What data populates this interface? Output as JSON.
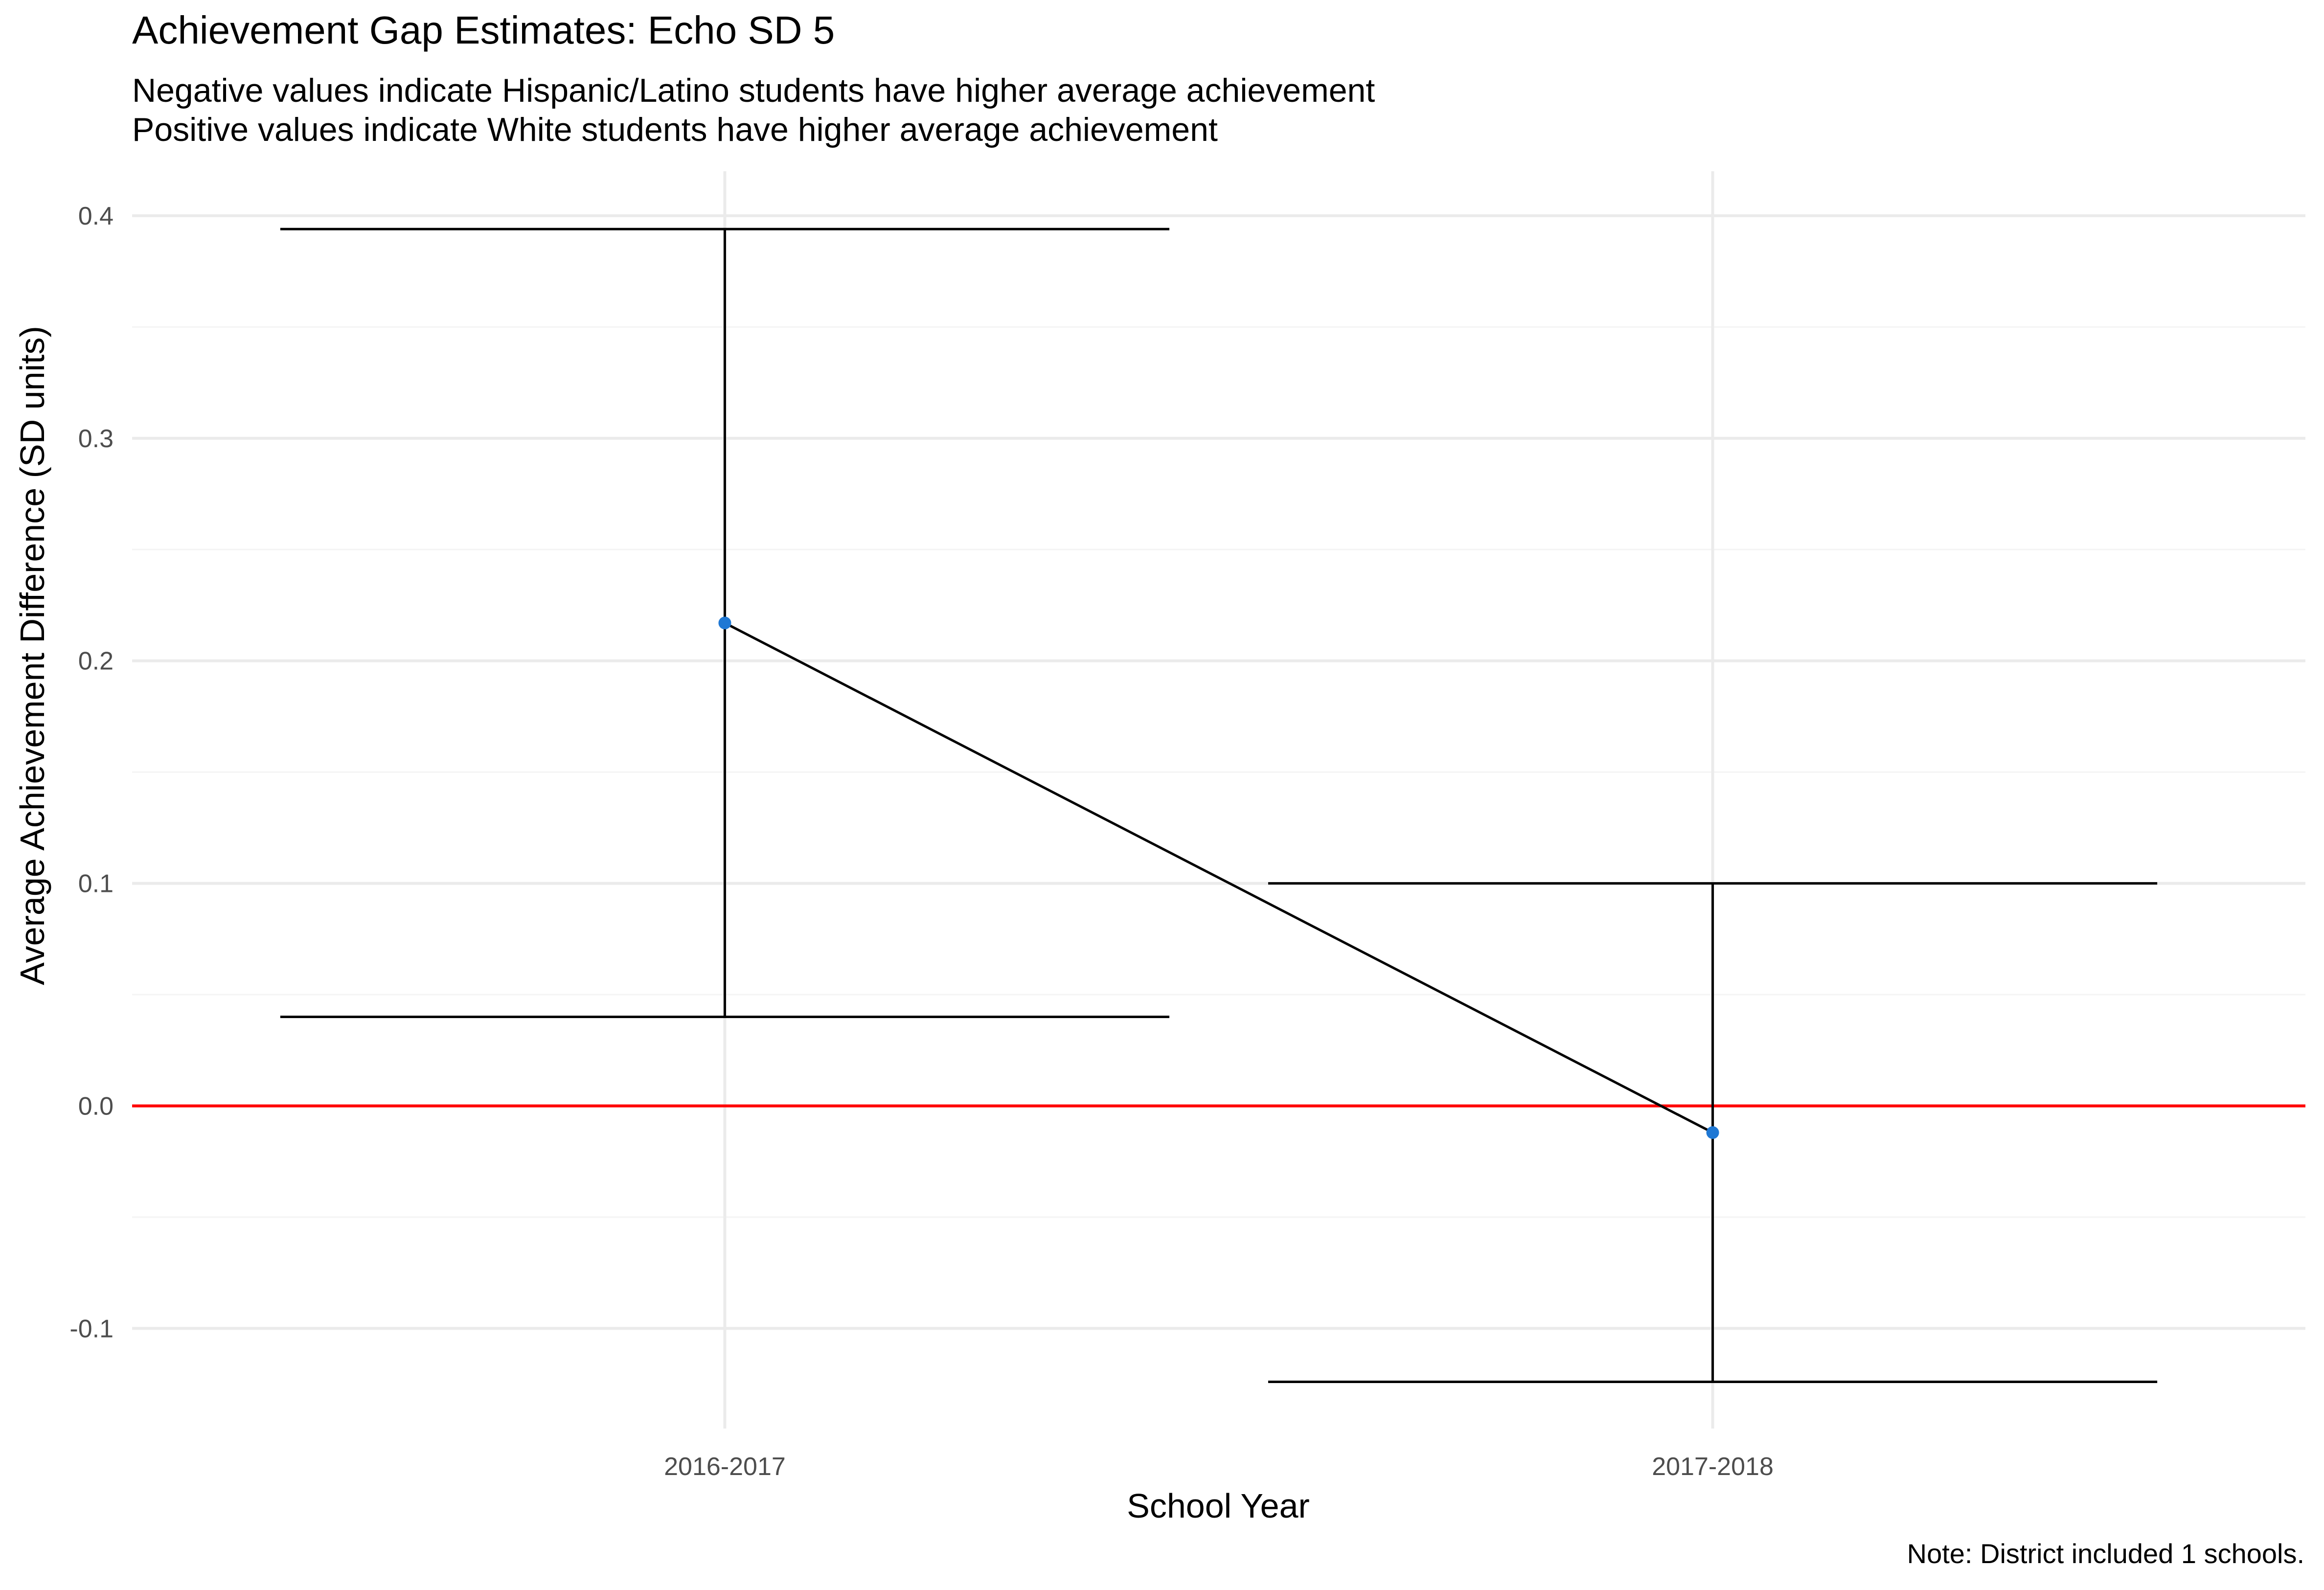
{
  "chart_data": {
    "type": "line",
    "title": "Achievement Gap Estimates: Echo SD 5",
    "subtitle_lines": [
      "Negative values indicate Hispanic/Latino students have higher average achievement",
      "Positive values indicate White students have higher average achievement"
    ],
    "caption": "Note: District included 1 schools.",
    "xlabel": "School Year",
    "ylabel": "Average Achievement Difference (SD units)",
    "categories": [
      "2016-2017",
      "2017-2018"
    ],
    "series": [
      {
        "values": [
          0.217,
          -0.012
        ],
        "lower": [
          0.04,
          -0.124
        ],
        "upper": [
          0.394,
          0.1
        ]
      }
    ],
    "reference_line": {
      "y": 0.0
    },
    "ylim": [
      -0.145,
      0.42
    ],
    "yticks": [
      -0.1,
      0.0,
      0.1,
      0.2,
      0.3,
      0.4
    ],
    "ytick_labels": [
      "-0.1",
      "0.0",
      "0.1",
      "0.2",
      "0.3",
      "0.4"
    ],
    "grid": true,
    "colors": {
      "point": "#1f78d4",
      "line": "#000000",
      "errorbar": "#000000",
      "reference": "#ff0000",
      "grid_major": "#ebebeb",
      "grid_minor": "#f4f4f4"
    }
  }
}
